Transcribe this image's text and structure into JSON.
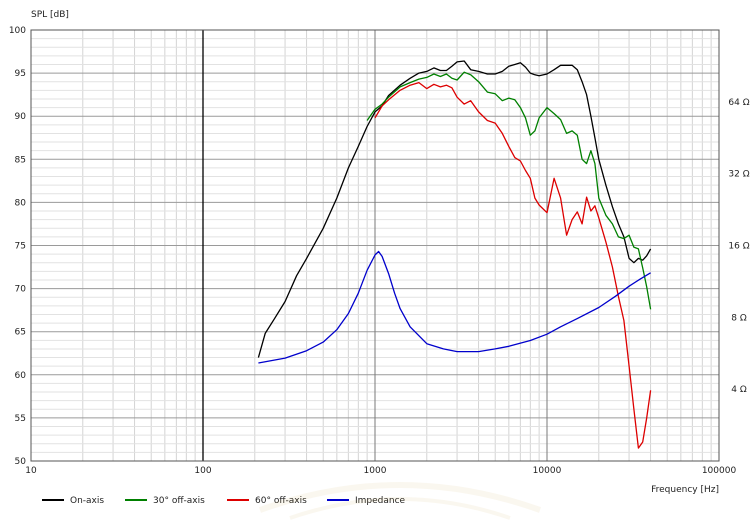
{
  "chart_data": {
    "type": "line",
    "ylabel": "SPL [dB]",
    "xlabel": "Frequency [Hz]",
    "x_scale": "log",
    "xlim": [
      10,
      100000
    ],
    "ylim": [
      50,
      100
    ],
    "x_ticks": [
      10,
      100,
      1000,
      10000,
      100000
    ],
    "x_tick_labels": [
      "10",
      "100",
      "1000",
      "10000",
      "100000"
    ],
    "y_ticks": [
      50,
      55,
      60,
      65,
      70,
      75,
      80,
      85,
      90,
      95,
      100
    ],
    "y_tick_labels": [
      "50",
      "55",
      "60",
      "65",
      "70",
      "75",
      "80",
      "85",
      "90",
      "95",
      "100"
    ],
    "right_axis": {
      "label": "Impedance",
      "scale": "log",
      "range_ohm": [
        2,
        128
      ],
      "ticks": [
        4,
        8,
        16,
        32,
        64
      ],
      "tick_labels": [
        "4 Ω",
        "8 Ω",
        "16 Ω",
        "32 Ω",
        "64 Ω"
      ]
    },
    "grid": true,
    "legend_position": "bottom-left",
    "series": [
      {
        "name": "On-axis",
        "color": "#000000",
        "axis": "left",
        "points": [
          [
            210,
            62
          ],
          [
            230,
            64.8
          ],
          [
            260,
            66.5
          ],
          [
            300,
            68.5
          ],
          [
            350,
            71.5
          ],
          [
            400,
            73.5
          ],
          [
            500,
            77
          ],
          [
            600,
            80.5
          ],
          [
            700,
            84
          ],
          [
            800,
            86.5
          ],
          [
            900,
            88.8
          ],
          [
            1000,
            90.5
          ],
          [
            1100,
            91.2
          ],
          [
            1200,
            92.4
          ],
          [
            1400,
            93.6
          ],
          [
            1600,
            94.4
          ],
          [
            1800,
            95
          ],
          [
            2000,
            95.2
          ],
          [
            2200,
            95.6
          ],
          [
            2400,
            95.3
          ],
          [
            2600,
            95.3
          ],
          [
            2800,
            95.8
          ],
          [
            3000,
            96.3
          ],
          [
            3300,
            96.4
          ],
          [
            3600,
            95.4
          ],
          [
            4000,
            95.2
          ],
          [
            4500,
            94.9
          ],
          [
            5000,
            94.9
          ],
          [
            5500,
            95.2
          ],
          [
            6000,
            95.8
          ],
          [
            6500,
            96
          ],
          [
            7000,
            96.2
          ],
          [
            7500,
            95.7
          ],
          [
            8000,
            95
          ],
          [
            8500,
            94.8
          ],
          [
            9000,
            94.7
          ],
          [
            10000,
            94.9
          ],
          [
            11000,
            95.4
          ],
          [
            12000,
            95.9
          ],
          [
            13000,
            95.9
          ],
          [
            14000,
            95.9
          ],
          [
            15000,
            95.4
          ],
          [
            16000,
            94
          ],
          [
            17000,
            92.5
          ],
          [
            18000,
            90
          ],
          [
            19000,
            87.5
          ],
          [
            20000,
            85
          ],
          [
            22000,
            82
          ],
          [
            24000,
            79.5
          ],
          [
            26000,
            77.5
          ],
          [
            28000,
            76
          ],
          [
            30000,
            73.5
          ],
          [
            32000,
            73
          ],
          [
            34000,
            73.5
          ],
          [
            36000,
            73.3
          ],
          [
            38000,
            73.8
          ],
          [
            40000,
            74.6
          ]
        ]
      },
      {
        "name": "30° off-axis",
        "color": "#008000",
        "axis": "left",
        "points": [
          [
            900,
            89.5
          ],
          [
            1000,
            90.8
          ],
          [
            1100,
            91.4
          ],
          [
            1200,
            92.2
          ],
          [
            1400,
            93.4
          ],
          [
            1600,
            93.9
          ],
          [
            1800,
            94.3
          ],
          [
            2000,
            94.5
          ],
          [
            2200,
            94.9
          ],
          [
            2400,
            94.6
          ],
          [
            2600,
            94.9
          ],
          [
            2800,
            94.4
          ],
          [
            3000,
            94.2
          ],
          [
            3300,
            95.1
          ],
          [
            3600,
            94.8
          ],
          [
            4000,
            94
          ],
          [
            4500,
            92.8
          ],
          [
            5000,
            92.6
          ],
          [
            5500,
            91.8
          ],
          [
            6000,
            92.1
          ],
          [
            6500,
            91.9
          ],
          [
            7000,
            91
          ],
          [
            7500,
            89.8
          ],
          [
            8000,
            87.8
          ],
          [
            8500,
            88.3
          ],
          [
            9000,
            89.8
          ],
          [
            10000,
            91
          ],
          [
            11000,
            90.3
          ],
          [
            12000,
            89.6
          ],
          [
            13000,
            88
          ],
          [
            14000,
            88.3
          ],
          [
            15000,
            87.8
          ],
          [
            16000,
            85
          ],
          [
            17000,
            84.5
          ],
          [
            18000,
            86
          ],
          [
            19000,
            84.5
          ],
          [
            20000,
            80.5
          ],
          [
            22000,
            78.5
          ],
          [
            24000,
            77.5
          ],
          [
            26000,
            76
          ],
          [
            28000,
            75.8
          ],
          [
            30000,
            76.2
          ],
          [
            32000,
            74.8
          ],
          [
            34000,
            74.6
          ],
          [
            36000,
            72.4
          ],
          [
            38000,
            70.2
          ],
          [
            40000,
            67.6
          ]
        ]
      },
      {
        "name": "60° off-axis",
        "color": "#dd0000",
        "axis": "left",
        "points": [
          [
            1000,
            89.8
          ],
          [
            1100,
            91.2
          ],
          [
            1200,
            91.9
          ],
          [
            1400,
            93
          ],
          [
            1600,
            93.6
          ],
          [
            1800,
            93.9
          ],
          [
            2000,
            93.2
          ],
          [
            2200,
            93.7
          ],
          [
            2400,
            93.4
          ],
          [
            2600,
            93.6
          ],
          [
            2800,
            93.3
          ],
          [
            3000,
            92.2
          ],
          [
            3300,
            91.4
          ],
          [
            3600,
            91.8
          ],
          [
            4000,
            90.5
          ],
          [
            4500,
            89.5
          ],
          [
            5000,
            89.2
          ],
          [
            5500,
            88
          ],
          [
            6000,
            86.5
          ],
          [
            6500,
            85.2
          ],
          [
            7000,
            84.8
          ],
          [
            7500,
            83.7
          ],
          [
            8000,
            82.8
          ],
          [
            8500,
            80.5
          ],
          [
            9000,
            79.7
          ],
          [
            10000,
            78.8
          ],
          [
            11000,
            82.8
          ],
          [
            12000,
            80.5
          ],
          [
            13000,
            76.2
          ],
          [
            14000,
            78
          ],
          [
            15000,
            78.9
          ],
          [
            16000,
            77.5
          ],
          [
            17000,
            80.6
          ],
          [
            18000,
            79
          ],
          [
            19000,
            79.6
          ],
          [
            20000,
            78.2
          ],
          [
            22000,
            75.4
          ],
          [
            24000,
            72.5
          ],
          [
            26000,
            69.1
          ],
          [
            28000,
            66.3
          ],
          [
            30000,
            61
          ],
          [
            32000,
            56
          ],
          [
            34000,
            51.5
          ],
          [
            36000,
            52.2
          ],
          [
            38000,
            55
          ],
          [
            40000,
            58.2
          ]
        ]
      },
      {
        "name": "Impedance",
        "color": "#0000cc",
        "axis": "right",
        "points_ohm": [
          [
            210,
            5.15
          ],
          [
            300,
            5.4
          ],
          [
            400,
            5.8
          ],
          [
            500,
            6.3
          ],
          [
            600,
            7.1
          ],
          [
            700,
            8.3
          ],
          [
            800,
            10.1
          ],
          [
            900,
            12.6
          ],
          [
            1000,
            14.6
          ],
          [
            1050,
            15.1
          ],
          [
            1100,
            14.4
          ],
          [
            1200,
            12.2
          ],
          [
            1300,
            10.1
          ],
          [
            1400,
            8.7
          ],
          [
            1600,
            7.3
          ],
          [
            2000,
            6.2
          ],
          [
            2500,
            5.9
          ],
          [
            3000,
            5.75
          ],
          [
            4000,
            5.75
          ],
          [
            5000,
            5.9
          ],
          [
            6000,
            6.05
          ],
          [
            8000,
            6.4
          ],
          [
            10000,
            6.8
          ],
          [
            12000,
            7.3
          ],
          [
            15000,
            7.9
          ],
          [
            20000,
            8.8
          ],
          [
            25000,
            9.8
          ],
          [
            30000,
            10.8
          ],
          [
            35000,
            11.6
          ],
          [
            40000,
            12.3
          ]
        ]
      }
    ]
  }
}
